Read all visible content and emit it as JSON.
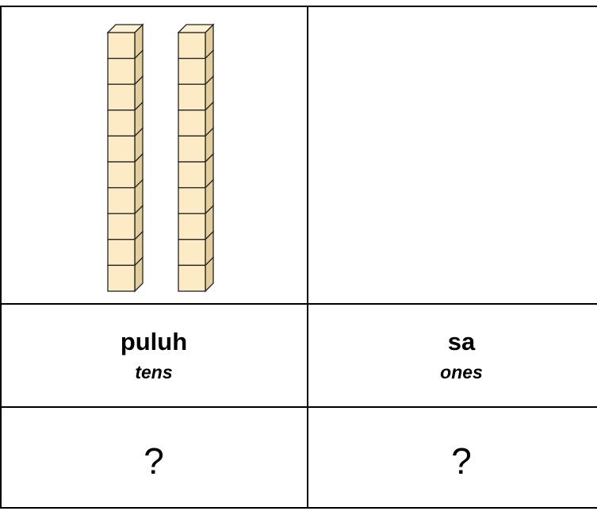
{
  "table": {
    "rows": [
      [],
      [
        {
          "label": "puluh",
          "translation": "tens"
        },
        {
          "label": "sa",
          "translation": "ones"
        }
      ],
      [
        "?",
        "?"
      ]
    ]
  }
}
